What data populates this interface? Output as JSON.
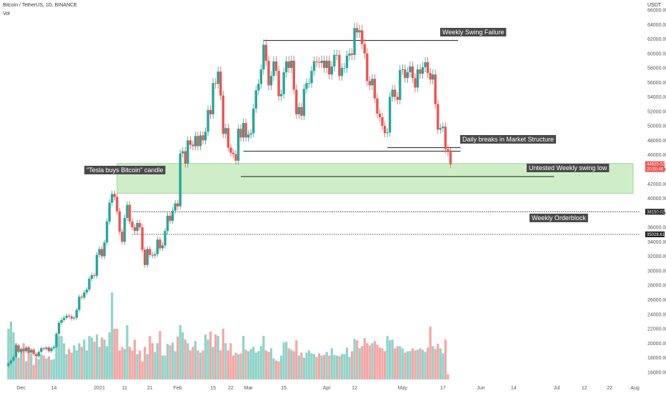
{
  "header": {
    "symbol_line": "Bitcoin / TetherUS, 1D, BINANCE",
    "volume_label": "Vol",
    "currency": "USDT"
  },
  "colors": {
    "up": "#26a69a",
    "down": "#ef5350",
    "vol_up": "#8fd3c9",
    "vol_down": "#f4a6a4",
    "zone_fill": "#cfeec8",
    "zone_stroke": "#8ccf87",
    "annotation_bg": "#4a4a4a",
    "price_tag": "#ef5350",
    "level_tag": "#1f1f1f"
  },
  "chart_data": {
    "type": "candlestick",
    "y_axis": {
      "min": 15000,
      "max": 66000,
      "side": "right",
      "ticks": [
        "16000.00",
        "18000.00",
        "20000.00",
        "22000.00",
        "24000.00",
        "26000.00",
        "28000.00",
        "30000.00",
        "32000.00",
        "34000.00",
        "36000.00",
        "38000.00",
        "40000.00",
        "42000.00",
        "44000.00",
        "46000.00",
        "48000.00",
        "50000.00",
        "52000.00",
        "54000.00",
        "56000.00",
        "58000.00",
        "60000.00",
        "62000.00",
        "64000.00",
        "66000.00"
      ],
      "tick_values": [
        16000,
        18000,
        20000,
        22000,
        24000,
        26000,
        28000,
        30000,
        32000,
        34000,
        36000,
        38000,
        40000,
        42000,
        44000,
        46000,
        48000,
        50000,
        52000,
        54000,
        56000,
        58000,
        60000,
        62000,
        64000,
        66000
      ]
    },
    "x_axis": {
      "ticks": [
        {
          "label": "Dec",
          "date": "2020-12-01"
        },
        {
          "label": "14",
          "date": "2020-12-14"
        },
        {
          "label": "2021",
          "date": "2021-01-01"
        },
        {
          "label": "11",
          "date": "2021-01-11"
        },
        {
          "label": "21",
          "date": "2021-01-21"
        },
        {
          "label": "Feb",
          "date": "2021-02-01"
        },
        {
          "label": "15",
          "date": "2021-02-15"
        },
        {
          "label": "22",
          "date": "2021-02-22"
        },
        {
          "label": "Mar",
          "date": "2021-03-01"
        },
        {
          "label": "15",
          "date": "2021-03-15"
        },
        {
          "label": "Apr",
          "date": "2021-04-01"
        },
        {
          "label": "12",
          "date": "2021-04-12"
        },
        {
          "label": "May",
          "date": "2021-05-01"
        },
        {
          "label": "17",
          "date": "2021-05-17"
        },
        {
          "label": "Jun",
          "date": "2021-06-01"
        },
        {
          "label": "14",
          "date": "2021-06-14"
        },
        {
          "label": "Jul",
          "date": "2021-07-01"
        },
        {
          "label": "12",
          "date": "2021-07-12"
        },
        {
          "label": "22",
          "date": "2021-07-22"
        },
        {
          "label": "Aug",
          "date": "2021-08-01"
        }
      ]
    },
    "first_candle_date": "2020-11-26",
    "closes": [
      17200,
      17600,
      18100,
      19700,
      18800,
      19200,
      18900,
      19400,
      18700,
      19100,
      18500,
      18200,
      18800,
      19300,
      19200,
      19400,
      18900,
      19300,
      19500,
      21300,
      22800,
      23200,
      23500,
      23800,
      23700,
      23400,
      23500,
      24600,
      26400,
      26300,
      27000,
      27400,
      28900,
      29400,
      29300,
      32200,
      33000,
      32000,
      33900,
      36800,
      39400,
      40600,
      40200,
      38200,
      35400,
      34000,
      37300,
      39100,
      36800,
      36000,
      35500,
      36600,
      36000,
      32900,
      30800,
      33000,
      32200,
      32100,
      32300,
      34300,
      33100,
      33500,
      35500,
      37600,
      36900,
      38300,
      39300,
      38900,
      46200,
      46500,
      44800,
      48000,
      47400,
      47200,
      48600,
      47200,
      48700,
      48000,
      49200,
      52200,
      51600,
      55900,
      55800,
      57500,
      54200,
      48900,
      49700,
      47000,
      46300,
      46100,
      45200,
      49600,
      48400,
      50400,
      48400,
      48800,
      49000,
      52400,
      54900,
      55800,
      57800,
      61200,
      59000,
      55600,
      56900,
      58900,
      57600,
      54100,
      54400,
      57400,
      58900,
      58000,
      59000,
      55000,
      51600,
      52600,
      51400,
      55100,
      55900,
      55900,
      57600,
      58900,
      58800,
      58700,
      59000,
      58000,
      59000,
      57100,
      58200,
      59800,
      59800,
      56900,
      58000,
      58000,
      59700,
      60000,
      59800,
      63500,
      62900,
      63200,
      61300,
      60000,
      56200,
      55600,
      56500,
      53800,
      51700,
      51200,
      50000,
      49000,
      49100,
      54000,
      55000,
      54000,
      53600,
      57700,
      57800,
      56600,
      57400,
      58200,
      56600,
      55300,
      57800,
      57200,
      58100,
      58800,
      57300,
      56400,
      57100,
      53000,
      49500,
      49700,
      49900,
      46800,
      46400,
      44700
    ],
    "volumes": [
      22000,
      23000,
      21500,
      20000,
      18000,
      19000,
      20000,
      17500,
      19500,
      18500,
      17000,
      18000,
      17800,
      18500,
      18300,
      17900,
      18200,
      17700,
      17800,
      20500,
      21000,
      21000,
      20000,
      18500,
      19200,
      18700,
      19700,
      19000,
      20000,
      19500,
      20500,
      19000,
      21000,
      20800,
      20200,
      21200,
      19500,
      20800,
      20500,
      19600,
      21500,
      27000,
      22000,
      22000,
      19000,
      19500,
      19200,
      22500,
      19500,
      19000,
      20500,
      18500,
      19000,
      17500,
      19500,
      18500,
      21000,
      20000,
      18800,
      20000,
      21700,
      18300,
      18300,
      19900,
      19700,
      20100,
      18900,
      20900,
      22500,
      21500,
      20500,
      20000,
      19000,
      19500,
      20300,
      19000,
      18700,
      19000,
      21200,
      20500,
      21600,
      19500,
      21200,
      21000,
      19000,
      22000,
      20000,
      19000,
      20000,
      18300,
      18700,
      18500,
      18600,
      21000,
      19100,
      18900,
      19200,
      19500,
      18700,
      18900,
      19600,
      21000,
      19000,
      18800,
      19300,
      17900,
      17600,
      17500,
      18300,
      20100,
      20200,
      19300,
      19100,
      18900,
      20400,
      18300,
      18700,
      18000,
      18700,
      19000,
      18600,
      18500,
      18100,
      18600,
      18300,
      18400,
      18800,
      18300,
      19300,
      18400,
      18300,
      18200,
      18500,
      18500,
      19400,
      18100,
      18900,
      20600,
      20400,
      19300,
      19600,
      20700,
      20000,
      19700,
      20000,
      20300,
      19800,
      19400,
      19300,
      18900,
      21000,
      20400,
      20500,
      19300,
      19600,
      19600,
      19300,
      18700,
      18900,
      18900,
      19300,
      19000,
      19100,
      19300,
      19100,
      18800,
      19400,
      22300,
      19600,
      19200,
      19900,
      19300,
      18600,
      20500,
      15700
    ],
    "annotations": [
      {
        "text": "Weekly Swing Failure",
        "level": 61800
      },
      {
        "text": "Daily breaks in Market Structure",
        "level": 46500
      },
      {
        "text": "Untested Weekly swing low",
        "level": 43000
      },
      {
        "text": "\"Tesla buys Bitcoin\" candle",
        "zone": [
          40700,
          44800
        ]
      },
      {
        "text": "Weekly Orderblock",
        "level": 35000
      }
    ],
    "horizontal_levels": [
      {
        "value": 61800,
        "from": "2021-03-07",
        "to": "2021-05-23",
        "style": "solid"
      },
      {
        "value": 47000,
        "from": "2021-04-25",
        "to": "2021-05-24",
        "style": "solid"
      },
      {
        "value": 46500,
        "from": "2021-02-27",
        "to": "2021-05-24",
        "style": "solid"
      },
      {
        "value": 43000,
        "from": "2021-02-26",
        "to": "2021-06-30",
        "style": "solid"
      },
      {
        "value": 38150.02,
        "label": "38150.02",
        "style": "dotted"
      },
      {
        "value": 35028.61,
        "label": "35028.61",
        "style": "dotted"
      }
    ],
    "zone": {
      "from": 40700,
      "to": 44800
    },
    "last_price": {
      "value": "44625.02",
      "countdown": "20:50:46"
    }
  }
}
